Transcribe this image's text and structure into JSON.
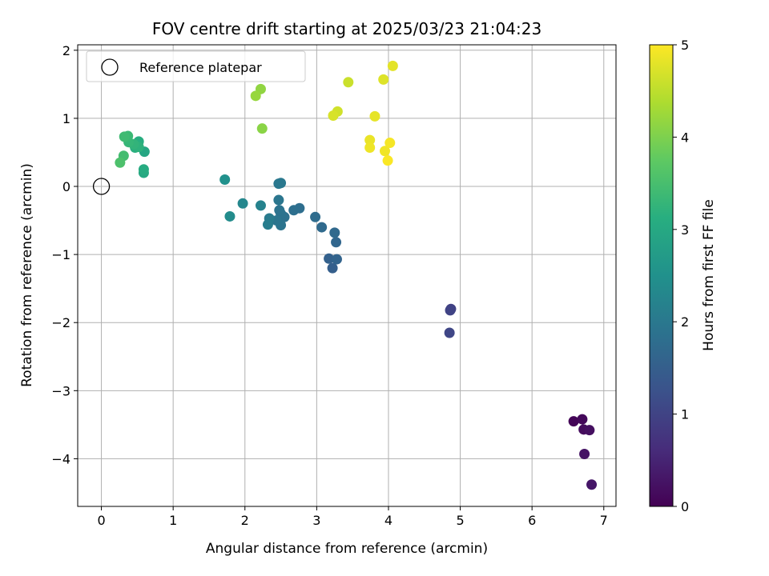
{
  "chart_data": {
    "type": "scatter",
    "title": "FOV centre drift starting at 2025/03/23 21:04:23",
    "xlabel": "Angular distance from reference (arcmin)",
    "ylabel": "Rotation from reference (arcmin)",
    "xlim": [
      -0.33,
      7.17
    ],
    "ylim": [
      -4.7,
      2.08
    ],
    "x_ticks": [
      0,
      1,
      2,
      3,
      4,
      5,
      6,
      7
    ],
    "y_ticks": [
      -4,
      -3,
      -2,
      -1,
      0,
      1,
      2
    ],
    "x_tick_labels": [
      "0",
      "1",
      "2",
      "3",
      "4",
      "5",
      "6",
      "7"
    ],
    "y_tick_labels": [
      "−4",
      "−3",
      "−2",
      "−1",
      "0",
      "1",
      "2"
    ],
    "grid": true,
    "legend": {
      "placement": "top-left",
      "entries": [
        {
          "label": "Reference platepar",
          "marker": "open-circle",
          "color": "#000000"
        }
      ]
    },
    "reference_point": {
      "x": 0,
      "y": 0
    },
    "colorbar": {
      "label": "Hours from first FF file",
      "colormap": "viridis",
      "range": [
        0,
        5
      ],
      "ticks": [
        0,
        1,
        2,
        3,
        4,
        5
      ],
      "tick_labels": [
        "0",
        "1",
        "2",
        "3",
        "4",
        "5"
      ]
    },
    "points": [
      {
        "x": 6.58,
        "y": -3.45,
        "hours": 0.05
      },
      {
        "x": 6.7,
        "y": -3.42,
        "hours": 0.1
      },
      {
        "x": 6.72,
        "y": -3.57,
        "hours": 0.15
      },
      {
        "x": 6.8,
        "y": -3.58,
        "hours": 0.2
      },
      {
        "x": 6.73,
        "y": -3.93,
        "hours": 0.25
      },
      {
        "x": 6.83,
        "y": -4.38,
        "hours": 0.3
      },
      {
        "x": 4.87,
        "y": -1.8,
        "hours": 0.95
      },
      {
        "x": 4.86,
        "y": -1.82,
        "hours": 1.0
      },
      {
        "x": 4.85,
        "y": -2.15,
        "hours": 1.05
      },
      {
        "x": 3.22,
        "y": -1.2,
        "hours": 1.5
      },
      {
        "x": 3.17,
        "y": -1.06,
        "hours": 1.55
      },
      {
        "x": 3.28,
        "y": -1.07,
        "hours": 1.6
      },
      {
        "x": 3.27,
        "y": -0.82,
        "hours": 1.65
      },
      {
        "x": 3.25,
        "y": -0.68,
        "hours": 1.7
      },
      {
        "x": 3.07,
        "y": -0.6,
        "hours": 1.72
      },
      {
        "x": 2.98,
        "y": -0.45,
        "hours": 1.75
      },
      {
        "x": 2.76,
        "y": -0.32,
        "hours": 1.8
      },
      {
        "x": 2.68,
        "y": -0.35,
        "hours": 1.82
      },
      {
        "x": 2.55,
        "y": -0.45,
        "hours": 1.85
      },
      {
        "x": 2.5,
        "y": -0.4,
        "hours": 1.88
      },
      {
        "x": 2.48,
        "y": -0.35,
        "hours": 1.9
      },
      {
        "x": 2.5,
        "y": -0.57,
        "hours": 1.92
      },
      {
        "x": 2.44,
        "y": -0.5,
        "hours": 1.94
      },
      {
        "x": 2.47,
        "y": -0.2,
        "hours": 1.96
      },
      {
        "x": 2.47,
        "y": 0.04,
        "hours": 1.98
      },
      {
        "x": 2.5,
        "y": 0.05,
        "hours": 2.0
      },
      {
        "x": 2.34,
        "y": -0.47,
        "hours": 2.05
      },
      {
        "x": 2.32,
        "y": -0.56,
        "hours": 2.1
      },
      {
        "x": 2.22,
        "y": -0.28,
        "hours": 2.2
      },
      {
        "x": 1.97,
        "y": -0.25,
        "hours": 2.3
      },
      {
        "x": 1.79,
        "y": -0.44,
        "hours": 2.4
      },
      {
        "x": 1.72,
        "y": 0.1,
        "hours": 2.5
      },
      {
        "x": 0.6,
        "y": 0.51,
        "hours": 2.95
      },
      {
        "x": 0.59,
        "y": 0.2,
        "hours": 3.0
      },
      {
        "x": 0.59,
        "y": 0.25,
        "hours": 3.05
      },
      {
        "x": 0.52,
        "y": 0.66,
        "hours": 3.1
      },
      {
        "x": 0.47,
        "y": 0.57,
        "hours": 3.15
      },
      {
        "x": 0.52,
        "y": 0.58,
        "hours": 3.2
      },
      {
        "x": 0.45,
        "y": 0.62,
        "hours": 3.25
      },
      {
        "x": 0.38,
        "y": 0.65,
        "hours": 3.3
      },
      {
        "x": 0.37,
        "y": 0.74,
        "hours": 3.35
      },
      {
        "x": 0.32,
        "y": 0.73,
        "hours": 3.4
      },
      {
        "x": 0.31,
        "y": 0.45,
        "hours": 3.45
      },
      {
        "x": 0.26,
        "y": 0.35,
        "hours": 3.55
      },
      {
        "x": 2.24,
        "y": 0.85,
        "hours": 4.1
      },
      {
        "x": 2.22,
        "y": 1.43,
        "hours": 4.15
      },
      {
        "x": 2.15,
        "y": 1.33,
        "hours": 4.2
      },
      {
        "x": 3.44,
        "y": 1.53,
        "hours": 4.6
      },
      {
        "x": 3.29,
        "y": 1.1,
        "hours": 4.65
      },
      {
        "x": 3.23,
        "y": 1.04,
        "hours": 4.7
      },
      {
        "x": 3.93,
        "y": 1.57,
        "hours": 4.75
      },
      {
        "x": 4.06,
        "y": 1.77,
        "hours": 4.8
      },
      {
        "x": 3.81,
        "y": 1.03,
        "hours": 4.82
      },
      {
        "x": 3.74,
        "y": 0.68,
        "hours": 4.85
      },
      {
        "x": 3.74,
        "y": 0.57,
        "hours": 4.88
      },
      {
        "x": 3.95,
        "y": 0.52,
        "hours": 4.9
      },
      {
        "x": 4.02,
        "y": 0.64,
        "hours": 4.94
      },
      {
        "x": 3.99,
        "y": 0.38,
        "hours": 4.98
      }
    ]
  }
}
